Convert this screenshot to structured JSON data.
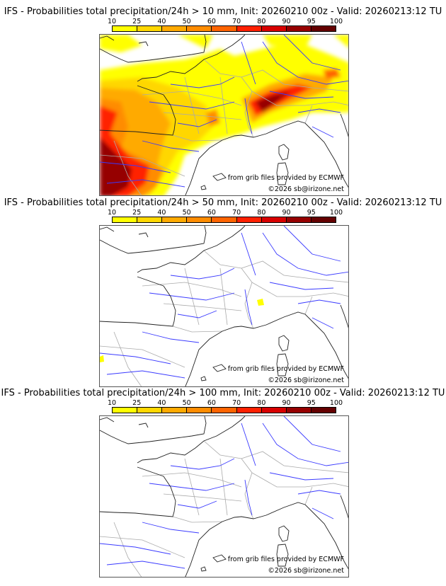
{
  "colorbar": {
    "ticks": [
      "10",
      "25",
      "40",
      "50",
      "60",
      "70",
      "80",
      "90",
      "95",
      "100"
    ],
    "colors": [
      "#ffff00",
      "#ffd700",
      "#ffaa00",
      "#ff8c00",
      "#ff6400",
      "#ff2000",
      "#d80000",
      "#960000",
      "#640000"
    ]
  },
  "panels": [
    {
      "title": "IFS - Probabilities total precipitation/24h > 10 mm, Init: 20260210 00z - Valid: 20260213:12 TU"
    },
    {
      "title": "IFS - Probabilities total precipitation/24h > 50 mm, Init: 20260210 00z - Valid: 20260213:12 TU"
    },
    {
      "title": "IFS - Probabilities total precipitation/24h > 100 mm, Init: 20260210 00z - Valid: 20260213:12 TU"
    }
  ],
  "credits": {
    "source": "from grib files provided by ECMWF",
    "copyright": "©2026 sb@irizone.net"
  }
}
